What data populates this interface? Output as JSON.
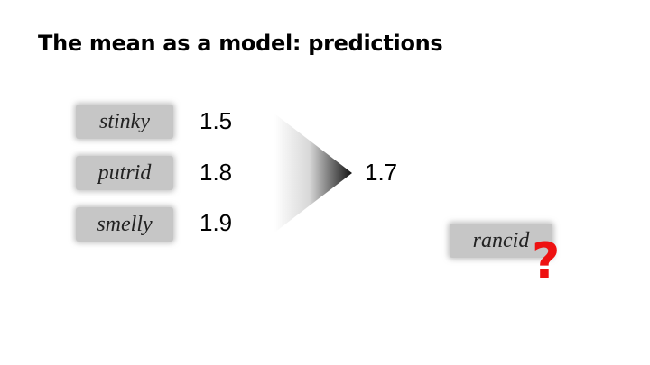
{
  "slide": {
    "title": "The mean as a model: predictions",
    "training_words": [
      {
        "word": "stinky",
        "value": "1.5"
      },
      {
        "word": "putrid",
        "value": "1.8"
      },
      {
        "word": "smelly",
        "value": "1.9"
      }
    ],
    "mean_value": "1.7",
    "query_word": "rancid",
    "question_mark": "?",
    "colors": {
      "box_fill": "#c6c6c6",
      "question_mark": "#ee1111",
      "arrow_gradient_start": "#ffffff",
      "arrow_gradient_end": "#000000"
    }
  }
}
